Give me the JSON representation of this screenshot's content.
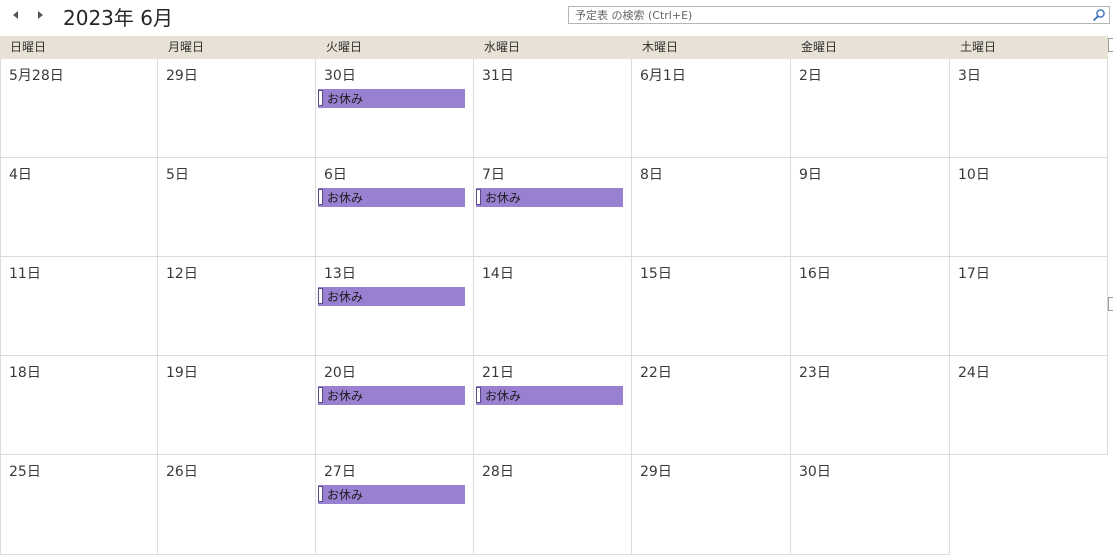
{
  "header": {
    "title": "2023年 6月",
    "prev_icon": "triangle-left-icon",
    "next_icon": "triangle-right-icon",
    "search_placeholder": "予定表 の検索 (Ctrl+E)",
    "search_icon": "magnifier-icon"
  },
  "weekdays": [
    "日曜日",
    "月曜日",
    "火曜日",
    "水曜日",
    "木曜日",
    "金曜日",
    "土曜日"
  ],
  "colors": {
    "header_bg": "#e8e1d5",
    "event_bg": "#9a80d1",
    "grid_line": "#dcdcdc"
  },
  "weeks": [
    [
      {
        "label": "5月28日",
        "events": []
      },
      {
        "label": "29日",
        "events": []
      },
      {
        "label": "30日",
        "events": [
          "お休み"
        ]
      },
      {
        "label": "31日",
        "events": []
      },
      {
        "label": "6月1日",
        "events": []
      },
      {
        "label": "2日",
        "events": []
      },
      {
        "label": "3日",
        "events": []
      }
    ],
    [
      {
        "label": "4日",
        "events": []
      },
      {
        "label": "5日",
        "events": []
      },
      {
        "label": "6日",
        "events": [
          "お休み"
        ]
      },
      {
        "label": "7日",
        "events": [
          "お休み"
        ]
      },
      {
        "label": "8日",
        "events": []
      },
      {
        "label": "9日",
        "events": []
      },
      {
        "label": "10日",
        "events": []
      }
    ],
    [
      {
        "label": "11日",
        "events": []
      },
      {
        "label": "12日",
        "events": []
      },
      {
        "label": "13日",
        "events": [
          "お休み"
        ]
      },
      {
        "label": "14日",
        "events": []
      },
      {
        "label": "15日",
        "events": []
      },
      {
        "label": "16日",
        "events": []
      },
      {
        "label": "17日",
        "events": []
      }
    ],
    [
      {
        "label": "18日",
        "events": []
      },
      {
        "label": "19日",
        "events": []
      },
      {
        "label": "20日",
        "events": [
          "お休み"
        ]
      },
      {
        "label": "21日",
        "events": [
          "お休み"
        ]
      },
      {
        "label": "22日",
        "events": []
      },
      {
        "label": "23日",
        "events": []
      },
      {
        "label": "24日",
        "events": []
      }
    ],
    [
      {
        "label": "25日",
        "events": []
      },
      {
        "label": "26日",
        "events": []
      },
      {
        "label": "27日",
        "events": [
          "お休み"
        ]
      },
      {
        "label": "28日",
        "events": []
      },
      {
        "label": "29日",
        "events": []
      },
      {
        "label": "30日",
        "events": []
      }
    ]
  ]
}
